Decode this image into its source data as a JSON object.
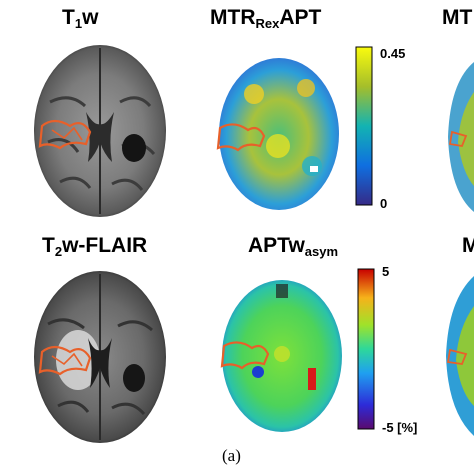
{
  "panels": {
    "t1w": {
      "title_main": "T",
      "title_sub": "1",
      "title_tail": "w"
    },
    "mtr": {
      "title_main": "MTR",
      "title_sub": "Rex",
      "title_tail": "APT",
      "cbar_max": "0.45",
      "cbar_min": "0"
    },
    "mtr_edge": {
      "title": "MT"
    },
    "t2w": {
      "title_main": "T",
      "title_sub": "2",
      "title_tail": "w-FLAIR"
    },
    "apt": {
      "title_main": "APTw",
      "title_sub": "asym",
      "cbar_max": "5",
      "cbar_min": "-5 [%]"
    },
    "m_edge": {
      "title": "M"
    }
  },
  "caption": "(a)",
  "colors": {
    "outline": "#e8602a",
    "parula_low": "#352a87",
    "parula_high": "#f9fb0e",
    "jet_low": "#5a0a6e",
    "jet_high": "#c80000"
  }
}
